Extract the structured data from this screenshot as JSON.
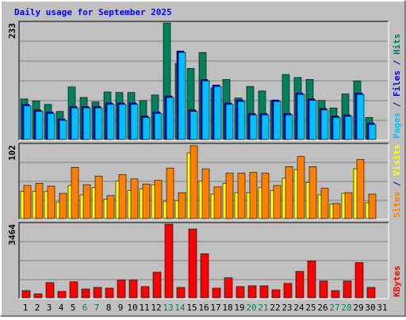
{
  "chart_data": {
    "type": "bar",
    "title": "Daily usage for September 2025",
    "categories": [
      "1",
      "2",
      "3",
      "4",
      "5",
      "6",
      "7",
      "8",
      "9",
      "10",
      "11",
      "12",
      "13",
      "14",
      "15",
      "16",
      "17",
      "18",
      "19",
      "20",
      "21",
      "22",
      "23",
      "24",
      "25",
      "26",
      "27",
      "28",
      "29",
      "30",
      "31"
    ],
    "category_colors": [
      "#000000",
      "#000000",
      "#000000",
      "#000000",
      "#000000",
      "#00805C",
      "#00805C",
      "#000000",
      "#000000",
      "#000000",
      "#000000",
      "#000000",
      "#00805C",
      "#00805C",
      "#000000",
      "#000000",
      "#000000",
      "#000000",
      "#000000",
      "#00805C",
      "#00805C",
      "#000000",
      "#000000",
      "#000000",
      "#000000",
      "#000000",
      "#00805C",
      "#00805C",
      "#000000",
      "#000000",
      "#000000"
    ],
    "grid": true,
    "panels": [
      {
        "ylim": [
          0,
          233
        ],
        "yticks": [
          233
        ],
        "series": [
          {
            "name": "Pages",
            "color": "#00C0FF",
            "values": [
              67,
              56,
              52,
              38,
              63,
              63,
              63,
              70,
              70,
              70,
              44,
              52,
              84,
              174,
              56,
              117,
              106,
              70,
              76,
              49,
              49,
              76,
              49,
              90,
              78,
              59,
              44,
              46,
              90,
              30,
              0
            ]
          },
          {
            "name": "Files",
            "color": "#0000FF",
            "values": [
              70,
              59,
              55,
              41,
              66,
              66,
              66,
              73,
              73,
              73,
              47,
              55,
              87,
              177,
              59,
              120,
              109,
              73,
              79,
              52,
              52,
              79,
              52,
              93,
              81,
              62,
              47,
              49,
              93,
              33,
              0
            ]
          },
          {
            "name": "Hits",
            "color": "#00805C",
            "values": [
              81,
              77,
              70,
              56,
              105,
              84,
              75,
              95,
              94,
              94,
              78,
              89,
              233,
              152,
              142,
              174,
              103,
              120,
              83,
              106,
              97,
              78,
              130,
              124,
              120,
              78,
              63,
              91,
              117,
              44,
              0
            ]
          }
        ]
      },
      {
        "ylim": [
          0,
          102
        ],
        "yticks": [
          102
        ],
        "series": [
          {
            "name": "Sites",
            "color": "#FF8000",
            "values": [
              46,
              49,
              45,
              35,
              71,
              47,
              59,
              32,
              61,
              55,
              48,
              53,
              70,
              36,
              101,
              69,
              44,
              63,
              63,
              64,
              63,
              46,
              72,
              86,
              72,
              42,
              21,
              36,
              82,
              34,
              0
            ]
          },
          {
            "name": "Visits",
            "color": "#FFFF00",
            "values": [
              38,
              38,
              38,
              23,
              46,
              33,
              43,
              27,
              52,
              39,
              41,
              47,
              24,
              25,
              91,
              52,
              34,
              49,
              36,
              36,
              43,
              39,
              56,
              68,
              50,
              33,
              20,
              35,
              69,
              22,
              0
            ]
          }
        ]
      },
      {
        "ylim": [
          0,
          3464
        ],
        "yticks": [
          3464
        ],
        "series": [
          {
            "name": "KBytes",
            "color": "#FF0000",
            "values": [
              339,
              188,
              716,
              301,
              754,
              414,
              490,
              452,
              829,
              829,
              528,
              1205,
              3464,
              490,
              3238,
              2071,
              452,
              942,
              528,
              565,
              565,
              377,
              678,
              1243,
              1732,
              791,
              339,
              791,
              1657,
              490,
              0
            ]
          }
        ]
      }
    ]
  }
}
